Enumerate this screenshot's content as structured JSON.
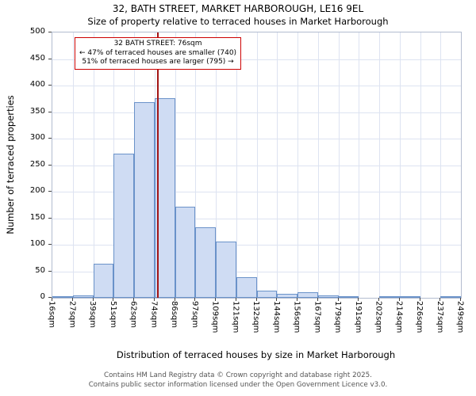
{
  "header": {
    "title": "32, BATH STREET, MARKET HARBOROUGH, LE16 9EL",
    "subtitle": "Size of property relative to terraced houses in Market Harborough"
  },
  "chart_data": {
    "type": "bar",
    "title": "32, BATH STREET, MARKET HARBOROUGH, LE16 9EL",
    "subtitle": "Size of property relative to terraced houses in Market Harborough",
    "xlabel": "Distribution of terraced houses by size in Market Harborough",
    "ylabel": "Number of terraced properties",
    "ylim": [
      0,
      500
    ],
    "ytick_step": 50,
    "grid": true,
    "legend_position": "none",
    "categories": [
      "16sqm",
      "27sqm",
      "39sqm",
      "51sqm",
      "62sqm",
      "74sqm",
      "86sqm",
      "97sqm",
      "109sqm",
      "121sqm",
      "132sqm",
      "144sqm",
      "156sqm",
      "167sqm",
      "179sqm",
      "191sqm",
      "202sqm",
      "214sqm",
      "226sqm",
      "237sqm",
      "249sqm"
    ],
    "bin_edges": [
      16,
      27,
      39,
      51,
      62,
      74,
      86,
      97,
      109,
      121,
      132,
      144,
      156,
      167,
      179,
      191,
      202,
      214,
      226,
      237,
      249
    ],
    "values": [
      1,
      5,
      64,
      272,
      369,
      376,
      172,
      133,
      106,
      39,
      14,
      7,
      10,
      5,
      2,
      0,
      1,
      1,
      0,
      1
    ],
    "marker": {
      "value": 76,
      "label": "32 BATH STREET: 76sqm"
    },
    "annotation": {
      "lines": [
        "32 BATH STREET: 76sqm",
        "← 47% of terraced houses are smaller (740)",
        "51% of terraced houses are larger (795) →"
      ]
    },
    "colors": {
      "bar_fill": "#cfdcf3",
      "bar_edge": "#6a92c9",
      "marker": "#a31515",
      "annotation_border": "#cc0000",
      "grid": "#dde3f1"
    }
  },
  "footer": {
    "line1": "Contains HM Land Registry data © Crown copyright and database right 2025.",
    "line2": "Contains public sector information licensed under the Open Government Licence v3.0."
  }
}
